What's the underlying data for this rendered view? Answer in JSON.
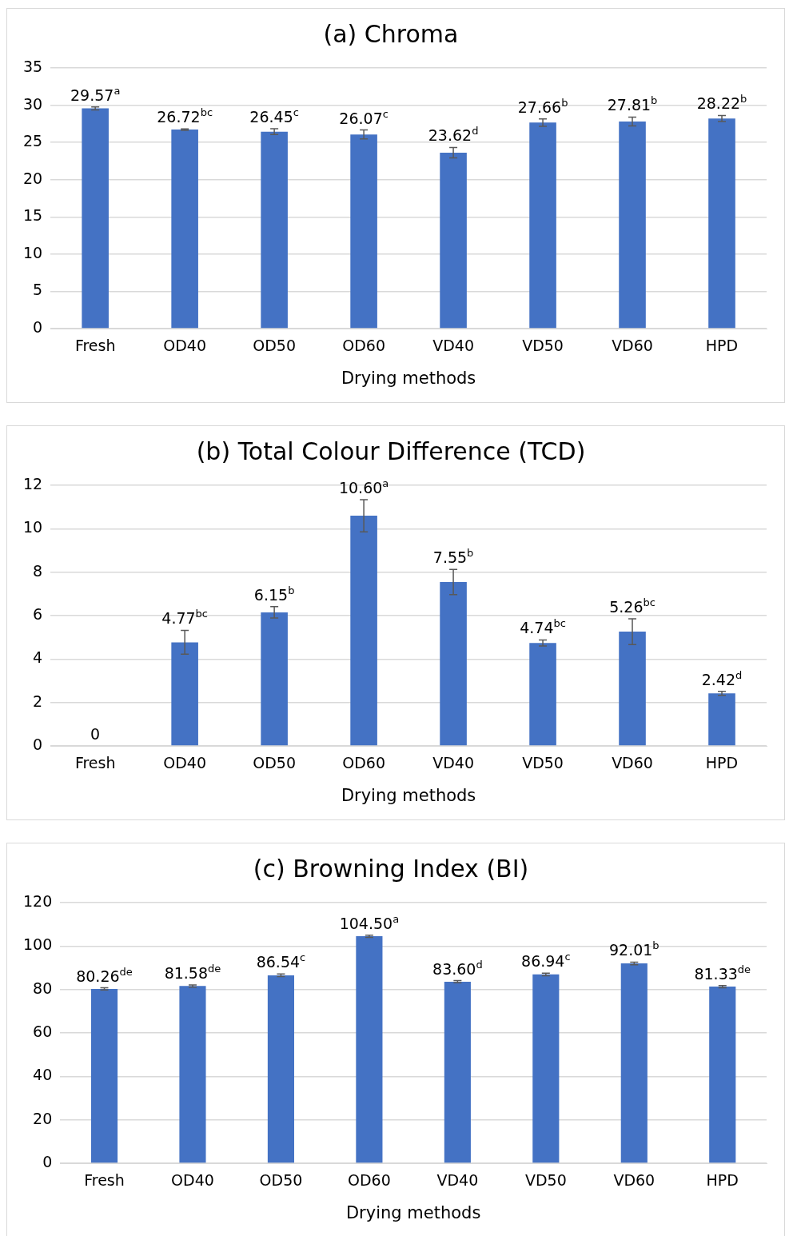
{
  "chart_data": [
    {
      "type": "bar",
      "title": "(a) Chroma",
      "xlabel": "Drying methods",
      "categories": [
        "Fresh",
        "OD40",
        "OD50",
        "OD60",
        "VD40",
        "VD50",
        "VD60",
        "HPD"
      ],
      "color": "#4472c4",
      "values": [
        29.57,
        26.72,
        26.45,
        26.07,
        23.62,
        27.66,
        27.81,
        28.22
      ],
      "errors": [
        0.2,
        0.1,
        0.4,
        0.6,
        0.7,
        0.5,
        0.6,
        0.4
      ],
      "value_labels": [
        "29.57$^{a}$",
        "26.72$^{bc}$",
        "26.45$^{c}$",
        "26.07$^{c}$",
        "23.62$^{d}$",
        "27.66$^{b}$",
        "27.81$^{b}$",
        "28.22$^{b}$"
      ],
      "ylim": [
        0,
        35
      ],
      "yticks": [
        0,
        5,
        10,
        15,
        20,
        25,
        30,
        35
      ],
      "grid": "y"
    },
    {
      "type": "bar",
      "title": "(b) Total Colour Difference (TCD)",
      "xlabel": "Drying methods",
      "categories": [
        "Fresh",
        "OD40",
        "OD50",
        "OD60",
        "VD40",
        "VD50",
        "VD60",
        "HPD"
      ],
      "color": "#4472c4",
      "values": [
        0,
        4.77,
        6.15,
        10.6,
        7.55,
        4.74,
        5.26,
        2.42
      ],
      "errors": [
        null,
        0.55,
        0.26,
        0.74,
        0.58,
        0.14,
        0.59,
        0.09
      ],
      "value_labels": [
        "0",
        "4.77$^{bc}$",
        "6.15$^{b}$",
        "10.60$^{a}$",
        "7.55$^{b}$",
        "4.74$^{bc}$",
        "5.26$^{bc}$",
        "2.42$^{d}$"
      ],
      "ylim": [
        0,
        12
      ],
      "yticks": [
        0,
        2,
        4,
        6,
        8,
        10,
        12
      ],
      "grid": "y"
    },
    {
      "type": "bar",
      "title": "(c) Browning Index (BI)",
      "xlabel": "Drying methods",
      "categories": [
        "Fresh",
        "OD40",
        "OD50",
        "OD60",
        "VD40",
        "VD50",
        "VD60",
        "HPD"
      ],
      "color": "#4472c4",
      "values": [
        80.26,
        81.58,
        86.54,
        104.5,
        83.6,
        86.94,
        92.01,
        81.33
      ],
      "errors": [
        0.5,
        0.5,
        0.6,
        0.5,
        0.5,
        0.6,
        0.6,
        0.5
      ],
      "value_labels": [
        "80.26$^{de}$",
        "81.58$^{de}$",
        "86.54$^{c}$",
        "104.50$^{a}$",
        "83.60$^{d}$",
        "86.94$^{c}$",
        "92.01$^{b}$",
        "81.33$^{de}$"
      ],
      "ylim": [
        0,
        120
      ],
      "yticks": [
        0,
        20,
        40,
        60,
        80,
        100,
        120
      ],
      "grid": "y"
    }
  ]
}
